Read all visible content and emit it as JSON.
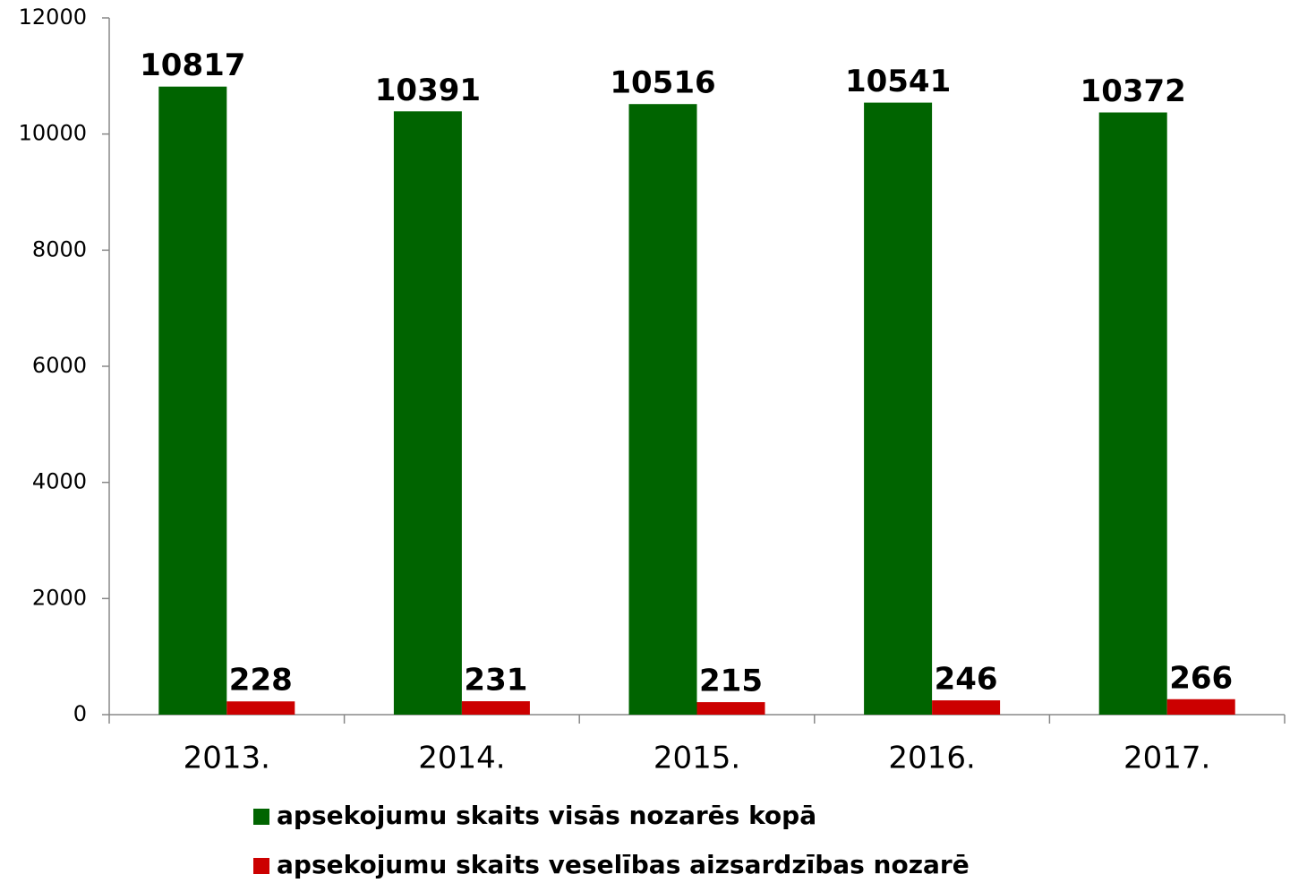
{
  "chart_data": {
    "type": "bar",
    "categories": [
      "2013.",
      "2014.",
      "2015.",
      "2016.",
      "2017."
    ],
    "series": [
      {
        "name": "apsekojumu skaits visās nozarēs kopā",
        "color": "#006400",
        "values": [
          10817,
          10391,
          10516,
          10541,
          10372
        ]
      },
      {
        "name": "apsekojumu skaits veselības aizsardzības nozarē",
        "color": "#cc0000",
        "values": [
          228,
          231,
          215,
          246,
          266
        ]
      }
    ],
    "ylim": [
      0,
      12000
    ],
    "yticks": [
      0,
      2000,
      4000,
      6000,
      8000,
      10000,
      12000
    ],
    "grid": false,
    "legend": "bottom"
  }
}
